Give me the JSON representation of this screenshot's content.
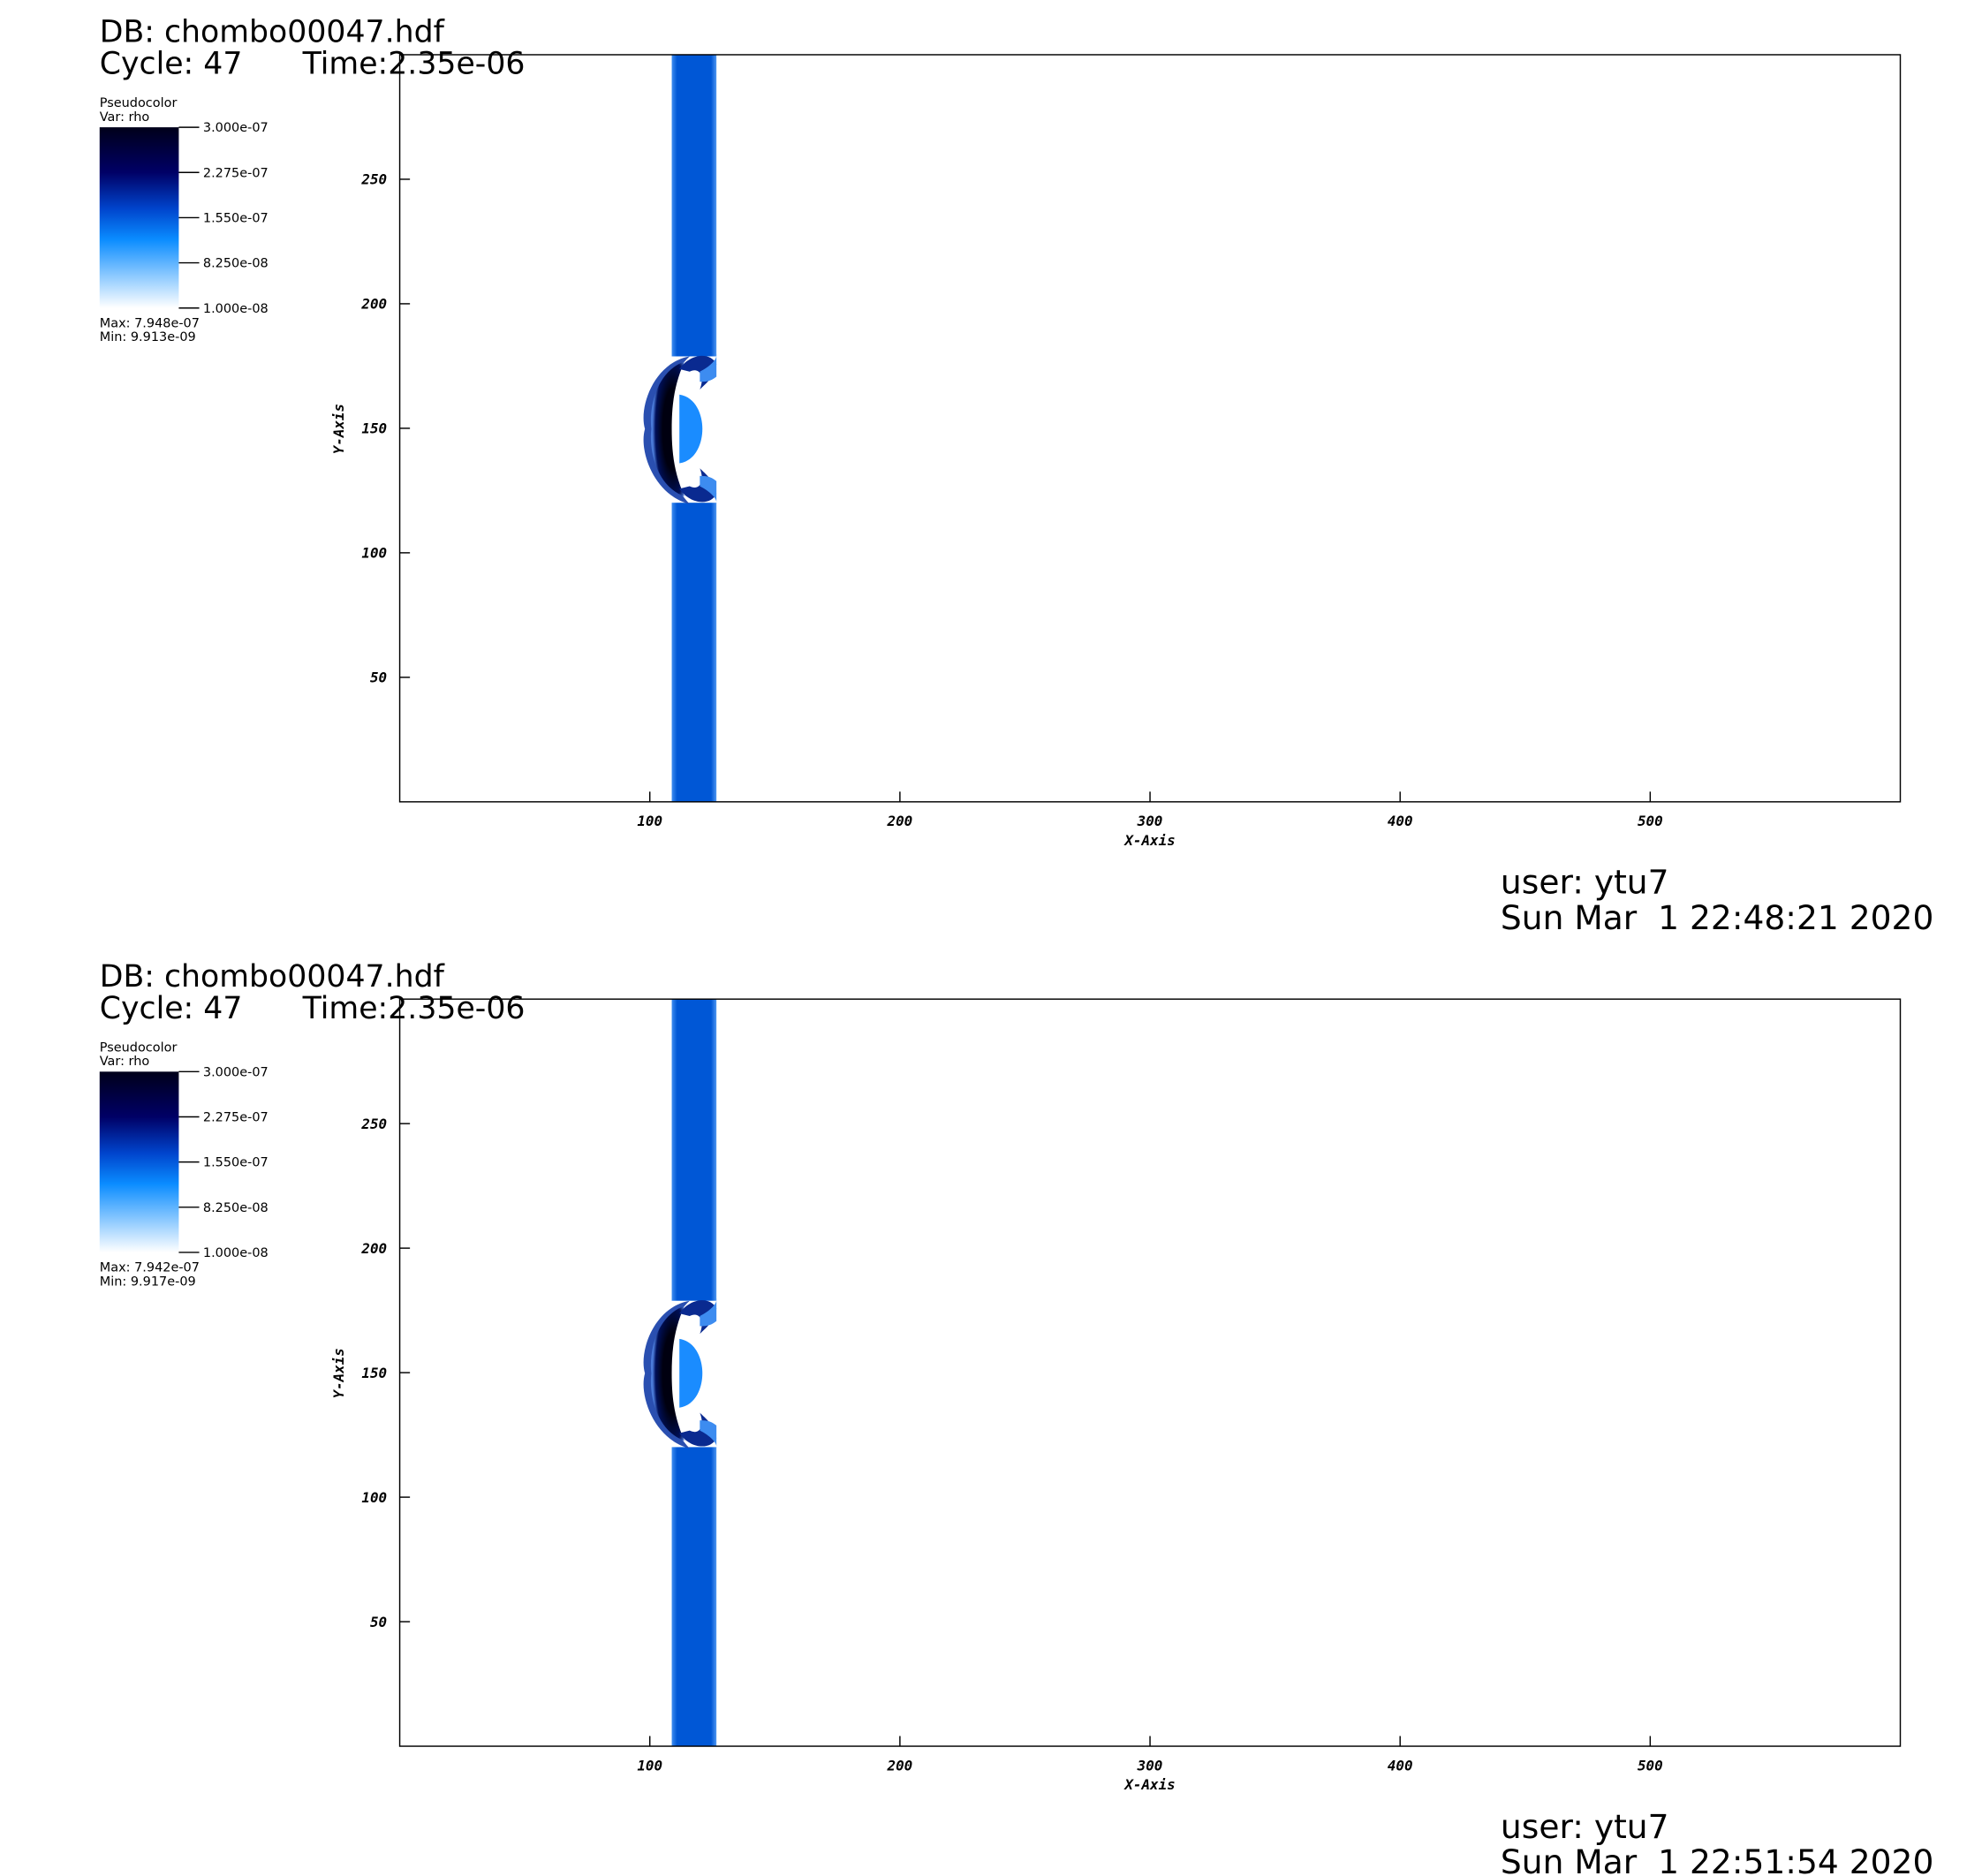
{
  "chart_data": [
    {
      "type": "pseudocolor",
      "db": "DB: chombo00047.hdf",
      "cycle": "Cycle: 47",
      "time": "Time:2.35e-06",
      "legend_title": "Pseudocolor",
      "var": "Var: rho",
      "colorbar_lim": [
        1e-08,
        3e-07
      ],
      "colorbar_ticks": [
        {
          "value": 3e-07,
          "label": "3.000e-07"
        },
        {
          "value": 2.275e-07,
          "label": "2.275e-07"
        },
        {
          "value": 1.55e-07,
          "label": "1.550e-07"
        },
        {
          "value": 8.25e-08,
          "label": "8.250e-08"
        },
        {
          "value": 1e-08,
          "label": "1.000e-08"
        }
      ],
      "max": "Max:  7.948e-07",
      "min": "Min:  9.913e-09",
      "x_label": "X-Axis",
      "y_label": "Y-Axis",
      "xlim": [
        0,
        600
      ],
      "ylim": [
        0,
        300
      ],
      "xticks": [
        100,
        200,
        300,
        400,
        500
      ],
      "yticks": [
        50,
        100,
        150,
        200,
        250
      ],
      "user": "user: ytu7",
      "date": "Sun Mar  1 22:48:21 2020"
    },
    {
      "type": "pseudocolor",
      "db": "DB: chombo00047.hdf",
      "cycle": "Cycle: 47",
      "time": "Time:2.35e-06",
      "legend_title": "Pseudocolor",
      "var": "Var: rho",
      "colorbar_lim": [
        1e-08,
        3e-07
      ],
      "colorbar_ticks": [
        {
          "value": 3e-07,
          "label": "3.000e-07"
        },
        {
          "value": 2.275e-07,
          "label": "2.275e-07"
        },
        {
          "value": 1.55e-07,
          "label": "1.550e-07"
        },
        {
          "value": 8.25e-08,
          "label": "8.250e-08"
        },
        {
          "value": 1e-08,
          "label": "1.000e-08"
        }
      ],
      "max": "Max:  7.942e-07",
      "min": "Min:  9.917e-09",
      "x_label": "X-Axis",
      "y_label": "Y-Axis",
      "xlim": [
        0,
        600
      ],
      "ylim": [
        0,
        300
      ],
      "xticks": [
        100,
        200,
        300,
        400,
        500
      ],
      "yticks": [
        50,
        100,
        150,
        200,
        250
      ],
      "user": "user: ytu7",
      "date": "Sun Mar  1 22:51:54 2020"
    }
  ]
}
